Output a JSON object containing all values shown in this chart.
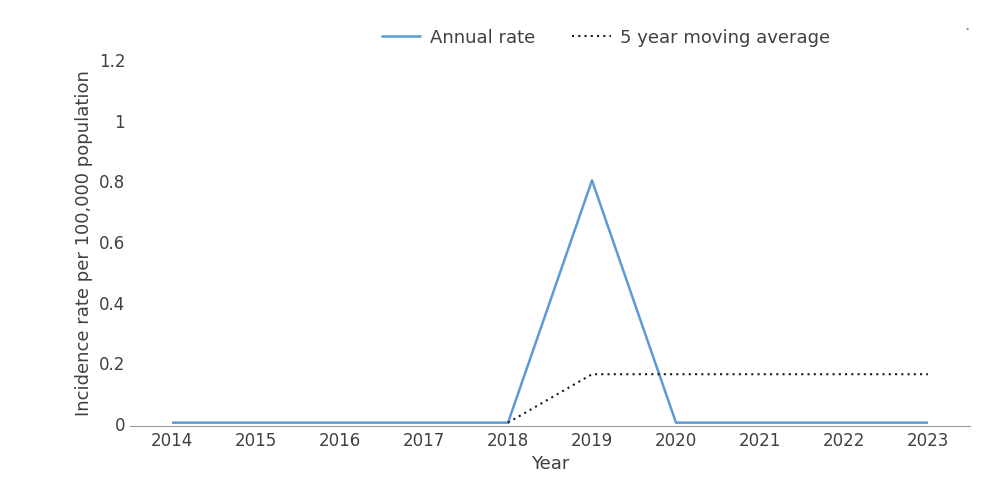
{
  "years": [
    2014,
    2015,
    2016,
    2017,
    2018,
    2019,
    2020,
    2021,
    2022,
    2023
  ],
  "annual_rate": [
    0.0,
    0.0,
    0.0,
    0.0,
    0.0,
    0.8,
    0.0,
    0.0,
    0.0,
    0.0
  ],
  "moving_avg_years": [
    2018,
    2019,
    2020,
    2021,
    2022,
    2023
  ],
  "moving_avg": [
    0.0,
    0.16,
    0.16,
    0.16,
    0.16,
    0.16
  ],
  "annual_color": "#5B9BD5",
  "moving_avg_color": "#1a1a1a",
  "ylabel": "Incidence rate per 100,000 population",
  "xlabel": "Year",
  "ylim": [
    -0.01,
    1.2
  ],
  "yticks": [
    0,
    0.2,
    0.4,
    0.6,
    0.8,
    1.0,
    1.2
  ],
  "ytick_labels": [
    "0",
    "0.2",
    "0.4",
    "0.6",
    "0.8",
    "1",
    "1.2"
  ],
  "xlim": [
    2013.5,
    2023.5
  ],
  "legend_annual": "Annual rate",
  "legend_moving": "5 year moving average",
  "bg_color": "#ffffff",
  "annual_linewidth": 1.8,
  "moving_linewidth": 1.5,
  "label_fontsize": 13,
  "tick_fontsize": 12,
  "legend_fontsize": 13
}
